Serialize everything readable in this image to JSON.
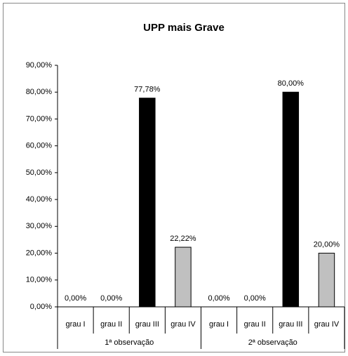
{
  "chart_data": {
    "type": "bar",
    "title": "UPP mais Grave",
    "groups": [
      {
        "name": "1ª observação",
        "categories": [
          "grau I",
          "grau II",
          "grau III",
          "grau IV"
        ],
        "values": [
          0,
          0,
          77.78,
          22.22
        ],
        "value_labels": [
          "0,00%",
          "0,00%",
          "77,78%",
          "22,22%"
        ],
        "colors": [
          "#ffffff",
          "#ffffff",
          "#000000",
          "#c0c0c0"
        ]
      },
      {
        "name": "2ª observação",
        "categories": [
          "grau I",
          "grau II",
          "grau III",
          "grau IV"
        ],
        "values": [
          0,
          0,
          80,
          20
        ],
        "value_labels": [
          "0,00%",
          "0,00%",
          "80,00%",
          "20,00%"
        ],
        "colors": [
          "#ffffff",
          "#ffffff",
          "#000000",
          "#c0c0c0"
        ]
      }
    ],
    "ylim": [
      0,
      90
    ],
    "yticks": [
      {
        "value": 0,
        "label": "0,00%"
      },
      {
        "value": 10,
        "label": "10,00%"
      },
      {
        "value": 20,
        "label": "20,00%"
      },
      {
        "value": 30,
        "label": "30,00%"
      },
      {
        "value": 40,
        "label": "40,00%"
      },
      {
        "value": 50,
        "label": "50,00%"
      },
      {
        "value": 60,
        "label": "60,00%"
      },
      {
        "value": 70,
        "label": "70,00%"
      },
      {
        "value": 80,
        "label": "80,00%"
      },
      {
        "value": 90,
        "label": "90,00%"
      }
    ],
    "grid": false
  }
}
